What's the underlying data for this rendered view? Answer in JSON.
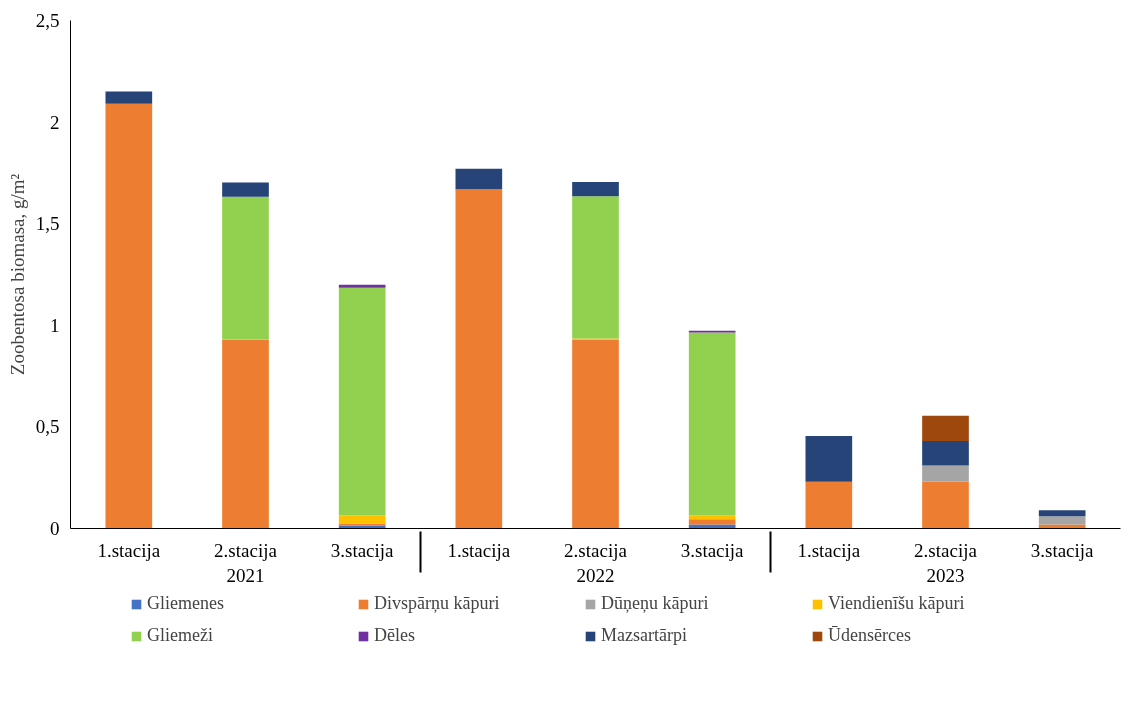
{
  "chart_data": {
    "type": "bar",
    "stacked": true,
    "ylabel": "Zoobentosa biomasa, g/m²",
    "categories": [
      "1.stacija",
      "2.stacija",
      "3.stacija",
      "1.stacija",
      "2.stacija",
      "3.stacija",
      "1.stacija",
      "2.stacija",
      "3.stacija"
    ],
    "annotations": [
      "2021",
      "2022",
      "2023"
    ],
    "ylim": [
      0,
      2.5
    ],
    "yticks": [
      0,
      {
        "value": 0.5,
        "label": "0,5"
      },
      1,
      {
        "value": 1.5,
        "label": "1,5"
      },
      2,
      {
        "value": 2.5,
        "label": "2,5"
      }
    ],
    "grid": false,
    "legend": "bottom",
    "series": [
      {
        "name": "Gliemenes",
        "color": "#4472c4",
        "values": [
          null,
          null,
          0.015,
          null,
          null,
          0.02,
          null,
          null,
          null
        ]
      },
      {
        "name": "Divspārņu kāpuri",
        "color": "#ed7d31",
        "values": [
          2.09,
          0.93,
          0.01,
          1.67,
          0.93,
          0.025,
          0.23,
          0.23,
          0.02
        ]
      },
      {
        "name": "Dūņeņu kāpuri",
        "color": "#a5a5a5",
        "values": [
          null,
          null,
          null,
          null,
          null,
          null,
          null,
          0.08,
          0.04
        ]
      },
      {
        "name": "Viendienīšu kāpuri",
        "color": "#ffc000",
        "values": [
          null,
          0.003,
          0.04,
          null,
          0.005,
          0.02,
          null,
          null,
          null
        ]
      },
      {
        "name": "Gliemeži",
        "color": "#92d050",
        "values": [
          null,
          0.7,
          1.12,
          null,
          0.7,
          0.9,
          null,
          null,
          null
        ]
      },
      {
        "name": "Dēles",
        "color": "#7030a0",
        "values": [
          null,
          null,
          0.015,
          null,
          null,
          0.008,
          null,
          null,
          null
        ]
      },
      {
        "name": "Mazsartārpi",
        "color": "#264478",
        "values": [
          0.06,
          0.07,
          null,
          0.1,
          0.07,
          null,
          0.225,
          0.12,
          0.03
        ]
      },
      {
        "name": "Ūdensērces",
        "color": "#9e480e",
        "values": [
          null,
          null,
          null,
          null,
          null,
          null,
          null,
          0.125,
          null
        ]
      }
    ]
  }
}
